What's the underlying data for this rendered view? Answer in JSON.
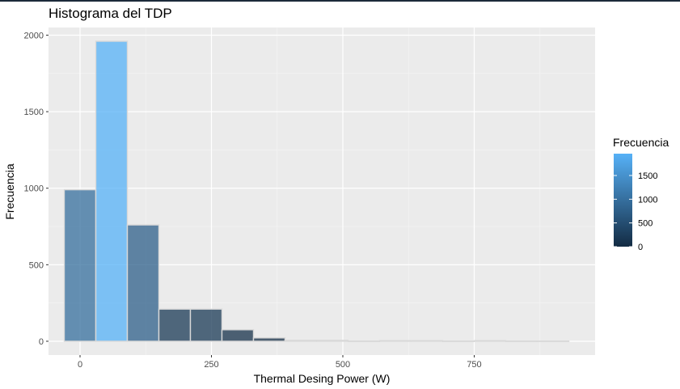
{
  "chart_data": {
    "type": "bar",
    "title": "Histograma del TDP",
    "xlabel": "Thermal Desing Power (W)",
    "ylabel": "Frecuencia",
    "xlim": [
      -60,
      980
    ],
    "ylim": [
      -90,
      2050
    ],
    "x_ticks": [
      0,
      250,
      500,
      750
    ],
    "y_ticks": [
      0,
      500,
      1000,
      1500,
      2000
    ],
    "grid": true,
    "bins": [
      {
        "x0": -30,
        "x1": 30,
        "count": 990
      },
      {
        "x0": 30,
        "x1": 90,
        "count": 1960
      },
      {
        "x0": 90,
        "x1": 150,
        "count": 760
      },
      {
        "x0": 150,
        "x1": 210,
        "count": 210
      },
      {
        "x0": 210,
        "x1": 270,
        "count": 210
      },
      {
        "x0": 270,
        "x1": 330,
        "count": 75
      },
      {
        "x0": 330,
        "x1": 390,
        "count": 22
      },
      {
        "x0": 390,
        "x1": 450,
        "count": 6
      },
      {
        "x0": 450,
        "x1": 510,
        "count": 6
      },
      {
        "x0": 510,
        "x1": 570,
        "count": 1
      },
      {
        "x0": 570,
        "x1": 630,
        "count": 4
      },
      {
        "x0": 630,
        "x1": 690,
        "count": 4
      },
      {
        "x0": 690,
        "x1": 750,
        "count": 1
      },
      {
        "x0": 750,
        "x1": 810,
        "count": 4
      },
      {
        "x0": 810,
        "x1": 870,
        "count": 1
      },
      {
        "x0": 870,
        "x1": 930,
        "count": 1
      }
    ],
    "legend": {
      "title": "Frecuencia",
      "position": "right",
      "ticks": [
        0,
        500,
        1000,
        1500
      ],
      "low_color": "#132B43",
      "high_color": "#56B1F7",
      "max_count": 1960
    },
    "fill_alpha": 0.75,
    "bar_outline_color": "#d9d9d9"
  }
}
